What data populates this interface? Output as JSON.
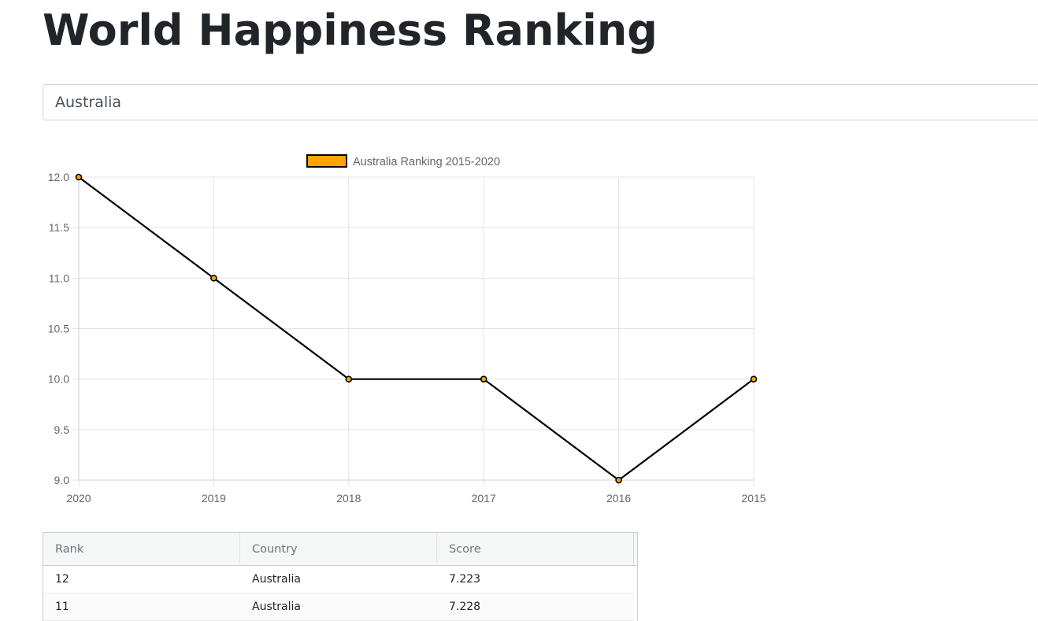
{
  "page": {
    "title": "World Happiness Ranking"
  },
  "country_select": {
    "selected": "Australia"
  },
  "chart_data": {
    "type": "line",
    "categories": [
      "2020",
      "2019",
      "2018",
      "2017",
      "2016",
      "2015"
    ],
    "series": [
      {
        "name": "Australia Ranking 2015-2020",
        "values": [
          12,
          11,
          10,
          10,
          9,
          10
        ],
        "line_color": "#000000",
        "fill_color": "#ffa500"
      }
    ],
    "y_ticks": [
      "12.0",
      "11.5",
      "11.0",
      "10.5",
      "10.0",
      "9.5",
      "9.0"
    ],
    "ylim": [
      9,
      12
    ],
    "grid": true,
    "legend_position": "top"
  },
  "table": {
    "headers": [
      "Rank",
      "Country",
      "Score"
    ],
    "rows": [
      [
        "12",
        "Australia",
        "7.223"
      ],
      [
        "11",
        "Australia",
        "7.228"
      ]
    ]
  }
}
